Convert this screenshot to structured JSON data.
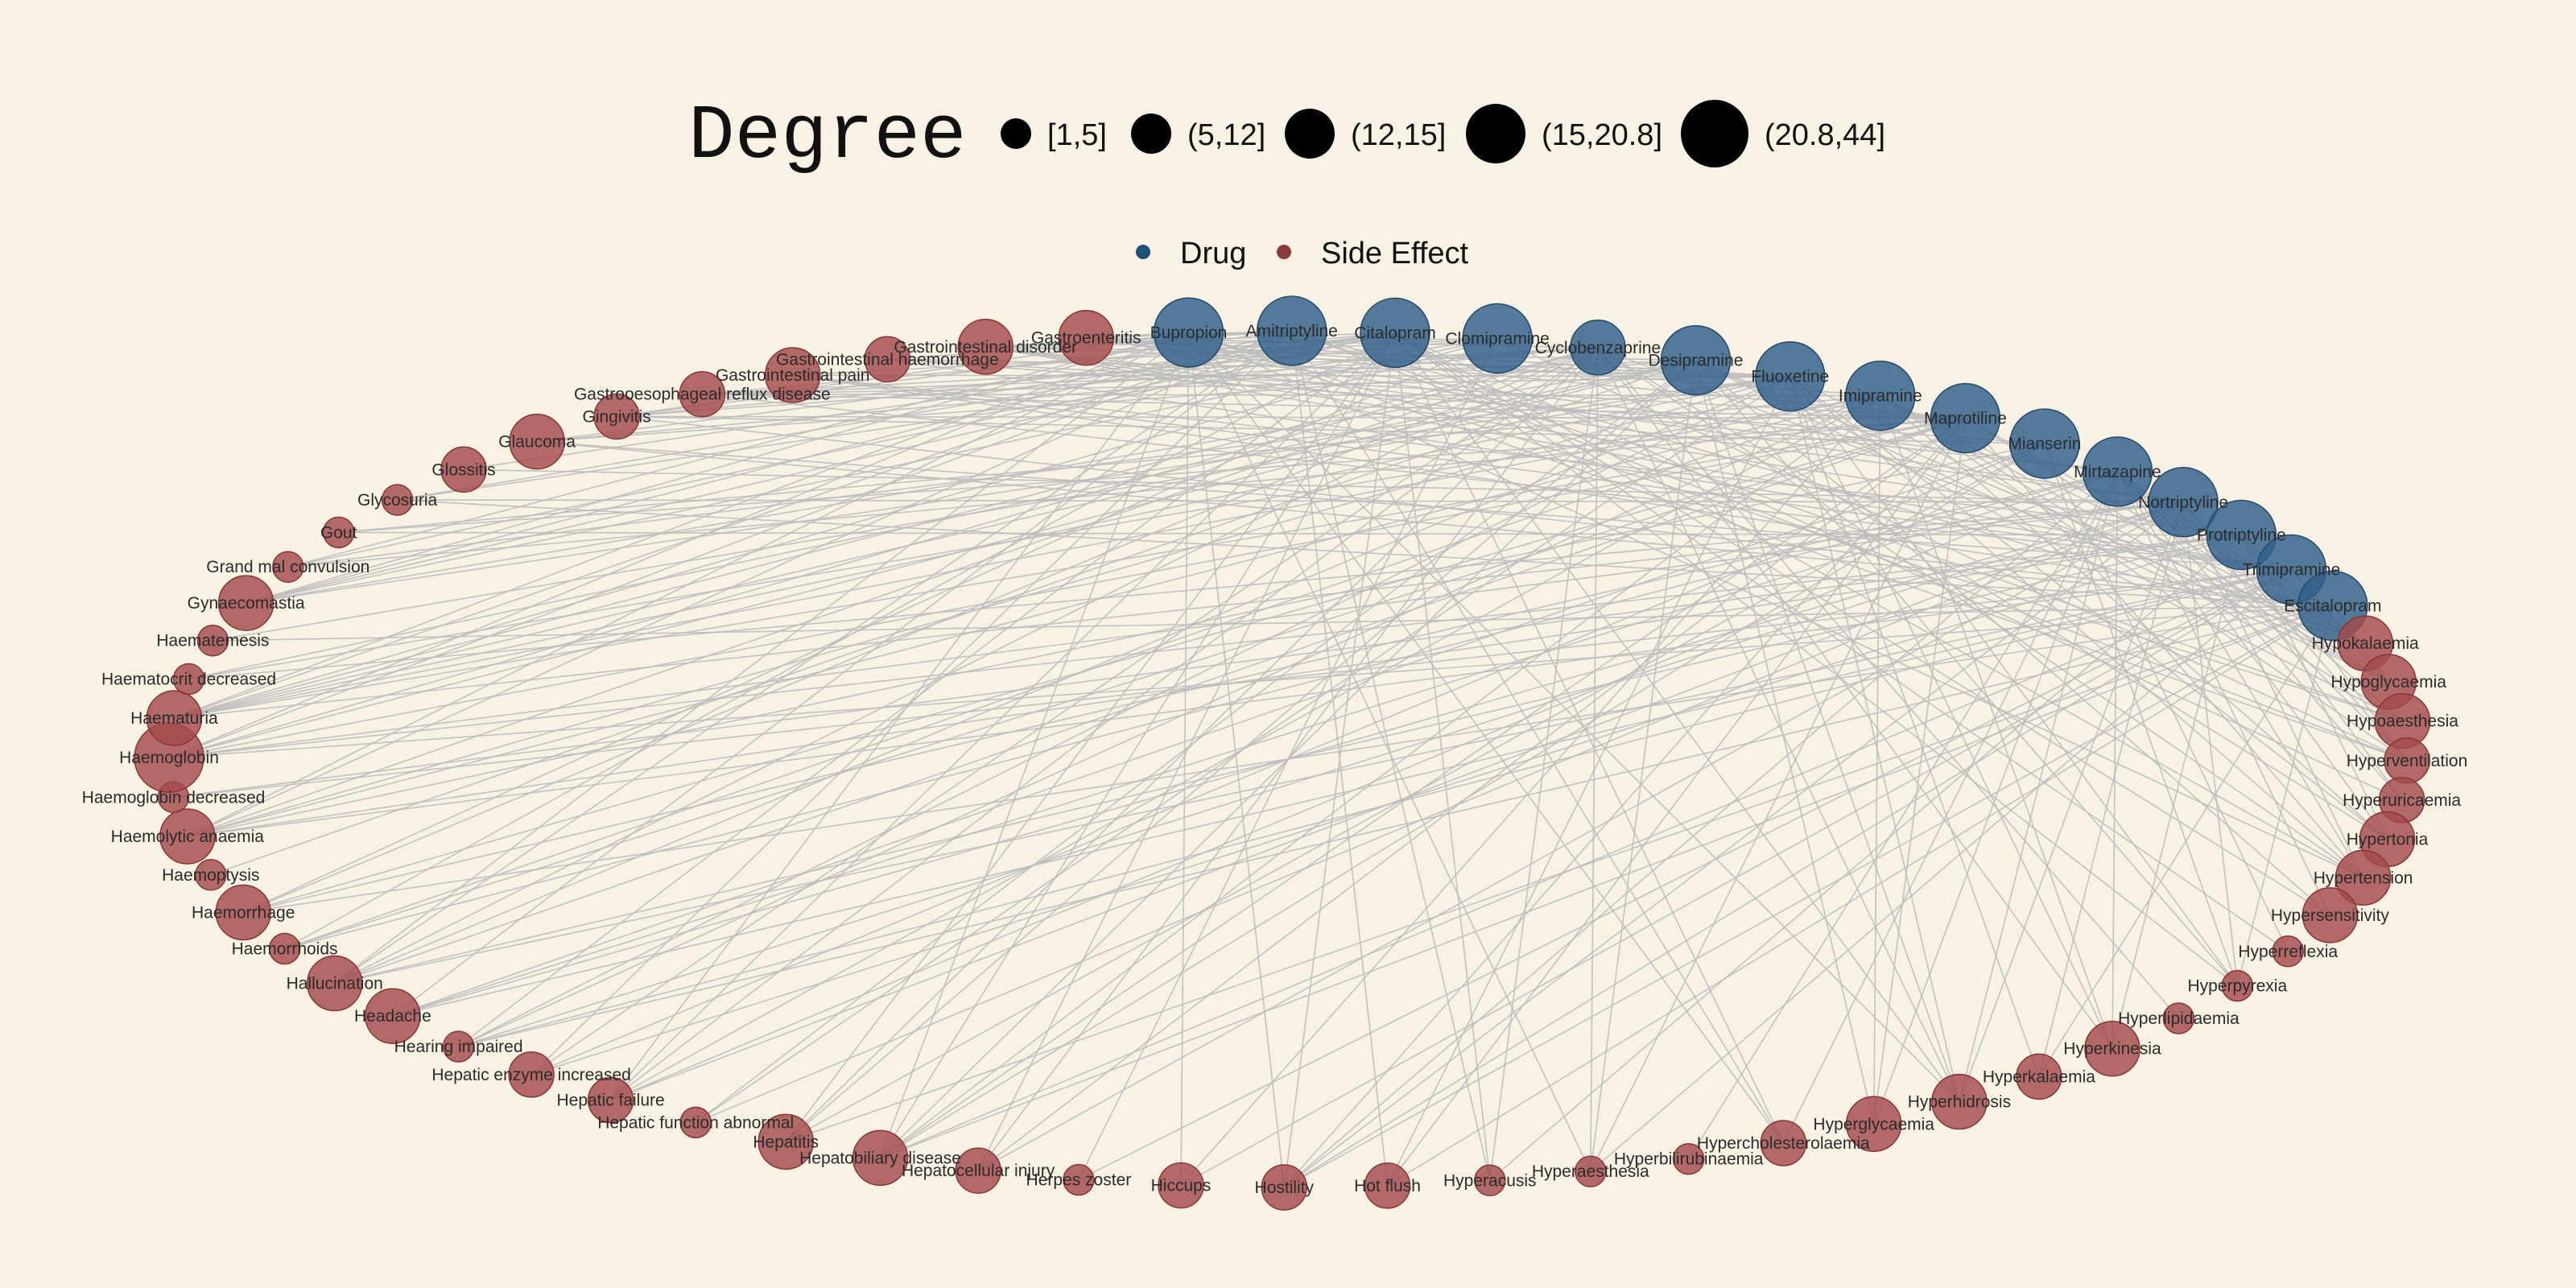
{
  "legend": {
    "size_title": "Degree",
    "size_bins": [
      "[1,5]",
      "(5,12]",
      "(12,15]",
      "(15,20.8]",
      "(20.8,44]"
    ],
    "type_items": [
      {
        "label": "Drug",
        "color": "#1f4e79"
      },
      {
        "label": "Side Effect",
        "color": "#8b3a3a"
      }
    ]
  },
  "colors": {
    "background": "#f8f2e5",
    "edge": "#bcbcbc",
    "drug_fill": "#2f5f8a",
    "side_effect_fill": "#a44b4b"
  },
  "nodes": [
    {
      "label": "Bupropion",
      "type": "Drug",
      "size_bin": 5
    },
    {
      "label": "Amitriptyline",
      "type": "Drug",
      "size_bin": 5
    },
    {
      "label": "Citalopram",
      "type": "Drug",
      "size_bin": 5
    },
    {
      "label": "Clomipramine",
      "type": "Drug",
      "size_bin": 5
    },
    {
      "label": "Cyclobenzaprine",
      "type": "Drug",
      "size_bin": 4
    },
    {
      "label": "Desipramine",
      "type": "Drug",
      "size_bin": 5
    },
    {
      "label": "Fluoxetine",
      "type": "Drug",
      "size_bin": 5
    },
    {
      "label": "Imipramine",
      "type": "Drug",
      "size_bin": 5
    },
    {
      "label": "Maprotiline",
      "type": "Drug",
      "size_bin": 5
    },
    {
      "label": "Mianserin",
      "type": "Drug",
      "size_bin": 5
    },
    {
      "label": "Mirtazapine",
      "type": "Drug",
      "size_bin": 5
    },
    {
      "label": "Nortriptyline",
      "type": "Drug",
      "size_bin": 5
    },
    {
      "label": "Protriptyline",
      "type": "Drug",
      "size_bin": 5
    },
    {
      "label": "Trimipramine",
      "type": "Drug",
      "size_bin": 5
    },
    {
      "label": "Escitalopram",
      "type": "Drug",
      "size_bin": 5
    },
    {
      "label": "Hypokalaemia",
      "type": "Side Effect",
      "size_bin": 4
    },
    {
      "label": "Hypoglycaemia",
      "type": "Side Effect",
      "size_bin": 4
    },
    {
      "label": "Hypoaesthesia",
      "type": "Side Effect",
      "size_bin": 4
    },
    {
      "label": "Hyperventilation",
      "type": "Side Effect",
      "size_bin": 3
    },
    {
      "label": "Hyperuricaemia",
      "type": "Side Effect",
      "size_bin": 3
    },
    {
      "label": "Hypertonia",
      "type": "Side Effect",
      "size_bin": 4
    },
    {
      "label": "Hypertension",
      "type": "Side Effect",
      "size_bin": 4
    },
    {
      "label": "Hypersensitivity",
      "type": "Side Effect",
      "size_bin": 4
    },
    {
      "label": "Hyperreflexia",
      "type": "Side Effect",
      "size_bin": 2
    },
    {
      "label": "Hyperpyrexia",
      "type": "Side Effect",
      "size_bin": 2
    },
    {
      "label": "Hyperlipidaemia",
      "type": "Side Effect",
      "size_bin": 2
    },
    {
      "label": "Hyperkinesia",
      "type": "Side Effect",
      "size_bin": 4
    },
    {
      "label": "Hyperkalaemia",
      "type": "Side Effect",
      "size_bin": 3
    },
    {
      "label": "Hyperhidrosis",
      "type": "Side Effect",
      "size_bin": 4
    },
    {
      "label": "Hyperglycaemia",
      "type": "Side Effect",
      "size_bin": 4
    },
    {
      "label": "Hypercholesterolaemia",
      "type": "Side Effect",
      "size_bin": 3
    },
    {
      "label": "Hyperbilirubinaemia",
      "type": "Side Effect",
      "size_bin": 2
    },
    {
      "label": "Hyperaesthesia",
      "type": "Side Effect",
      "size_bin": 2
    },
    {
      "label": "Hyperacusis",
      "type": "Side Effect",
      "size_bin": 2
    },
    {
      "label": "Hot flush",
      "type": "Side Effect",
      "size_bin": 3
    },
    {
      "label": "Hostility",
      "type": "Side Effect",
      "size_bin": 3
    },
    {
      "label": "Hiccups",
      "type": "Side Effect",
      "size_bin": 3
    },
    {
      "label": "Herpes zoster",
      "type": "Side Effect",
      "size_bin": 2
    },
    {
      "label": "Hepatocellular injury",
      "type": "Side Effect",
      "size_bin": 3
    },
    {
      "label": "Hepatobiliary disease",
      "type": "Side Effect",
      "size_bin": 4
    },
    {
      "label": "Hepatitis",
      "type": "Side Effect",
      "size_bin": 4
    },
    {
      "label": "Hepatic function abnormal",
      "type": "Side Effect",
      "size_bin": 2
    },
    {
      "label": "Hepatic failure",
      "type": "Side Effect",
      "size_bin": 3
    },
    {
      "label": "Hepatic enzyme increased",
      "type": "Side Effect",
      "size_bin": 3
    },
    {
      "label": "Hearing impaired",
      "type": "Side Effect",
      "size_bin": 2
    },
    {
      "label": "Headache",
      "type": "Side Effect",
      "size_bin": 4
    },
    {
      "label": "Hallucination",
      "type": "Side Effect",
      "size_bin": 4
    },
    {
      "label": "Haemorrhoids",
      "type": "Side Effect",
      "size_bin": 2
    },
    {
      "label": "Haemorrhage",
      "type": "Side Effect",
      "size_bin": 4
    },
    {
      "label": "Haemoptysis",
      "type": "Side Effect",
      "size_bin": 2
    },
    {
      "label": "Haemolytic anaemia",
      "type": "Side Effect",
      "size_bin": 4
    },
    {
      "label": "Haemoglobin decreased",
      "type": "Side Effect",
      "size_bin": 2
    },
    {
      "label": "Haemoglobin",
      "type": "Side Effect",
      "size_bin": 5
    },
    {
      "label": "Haematuria",
      "type": "Side Effect",
      "size_bin": 4
    },
    {
      "label": "Haematocrit decreased",
      "type": "Side Effect",
      "size_bin": 2
    },
    {
      "label": "Haematemesis",
      "type": "Side Effect",
      "size_bin": 2
    },
    {
      "label": "Gynaecomastia",
      "type": "Side Effect",
      "size_bin": 4
    },
    {
      "label": "Grand mal convulsion",
      "type": "Side Effect",
      "size_bin": 2
    },
    {
      "label": "Gout",
      "type": "Side Effect",
      "size_bin": 2
    },
    {
      "label": "Glycosuria",
      "type": "Side Effect",
      "size_bin": 2
    },
    {
      "label": "Glossitis",
      "type": "Side Effect",
      "size_bin": 3
    },
    {
      "label": "Glaucoma",
      "type": "Side Effect",
      "size_bin": 4
    },
    {
      "label": "Gingivitis",
      "type": "Side Effect",
      "size_bin": 3
    },
    {
      "label": "Gastrooesophageal reflux disease",
      "type": "Side Effect",
      "size_bin": 3
    },
    {
      "label": "Gastrointestinal pain",
      "type": "Side Effect",
      "size_bin": 4
    },
    {
      "label": "Gastrointestinal haemorrhage",
      "type": "Side Effect",
      "size_bin": 3
    },
    {
      "label": "Gastrointestinal disorder",
      "type": "Side Effect",
      "size_bin": 4
    },
    {
      "label": "Gastroenteritis",
      "type": "Side Effect",
      "size_bin": 4
    }
  ]
}
